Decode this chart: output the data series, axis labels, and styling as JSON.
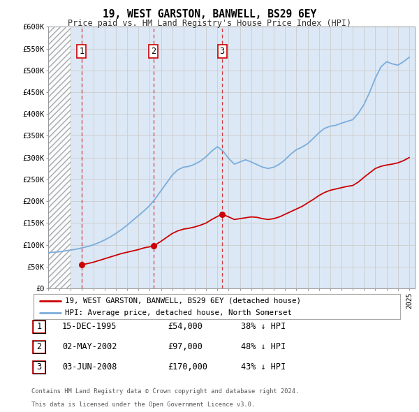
{
  "title": "19, WEST GARSTON, BANWELL, BS29 6EY",
  "subtitle": "Price paid vs. HM Land Registry's House Price Index (HPI)",
  "ylim": [
    0,
    600000
  ],
  "yticks": [
    0,
    50000,
    100000,
    150000,
    200000,
    250000,
    300000,
    350000,
    400000,
    450000,
    500000,
    550000,
    600000
  ],
  "ytick_labels": [
    "£0",
    "£50K",
    "£100K",
    "£150K",
    "£200K",
    "£250K",
    "£300K",
    "£350K",
    "£400K",
    "£450K",
    "£500K",
    "£550K",
    "£600K"
  ],
  "xlim_start": 1993.0,
  "xlim_end": 2025.5,
  "hatch_end": 1995.0,
  "transactions": [
    {
      "year": 1995.96,
      "price": 54000,
      "label": "1"
    },
    {
      "year": 2002.33,
      "price": 97000,
      "label": "2"
    },
    {
      "year": 2008.42,
      "price": 170000,
      "label": "3"
    }
  ],
  "hpi_line_color": "#7aaddc",
  "price_line_color": "#cc0000",
  "transaction_dot_color": "#cc0000",
  "transaction_box_color": "#cc0000",
  "grid_color": "#cccccc",
  "background_color": "#ffffff",
  "plot_bg_color": "#dce8f5",
  "legend_label_price": "19, WEST GARSTON, BANWELL, BS29 6EY (detached house)",
  "legend_label_hpi": "HPI: Average price, detached house, North Somerset",
  "footer_line1": "Contains HM Land Registry data © Crown copyright and database right 2024.",
  "footer_line2": "This data is licensed under the Open Government Licence v3.0.",
  "table_rows": [
    {
      "num": "1",
      "date": "15-DEC-1995",
      "price": "£54,000",
      "pct": "38% ↓ HPI"
    },
    {
      "num": "2",
      "date": "02-MAY-2002",
      "price": "£97,000",
      "pct": "48% ↓ HPI"
    },
    {
      "num": "3",
      "date": "03-JUN-2008",
      "price": "£170,000",
      "pct": "43% ↓ HPI"
    }
  ],
  "hpi_data_x": [
    1993.0,
    1993.5,
    1994.0,
    1994.5,
    1995.0,
    1995.5,
    1996.0,
    1996.5,
    1997.0,
    1997.5,
    1998.0,
    1998.5,
    1999.0,
    1999.5,
    2000.0,
    2000.5,
    2001.0,
    2001.5,
    2002.0,
    2002.5,
    2003.0,
    2003.5,
    2004.0,
    2004.5,
    2005.0,
    2005.5,
    2006.0,
    2006.5,
    2007.0,
    2007.5,
    2008.0,
    2008.5,
    2009.0,
    2009.5,
    2010.0,
    2010.5,
    2011.0,
    2011.5,
    2012.0,
    2012.5,
    2013.0,
    2013.5,
    2014.0,
    2014.5,
    2015.0,
    2015.5,
    2016.0,
    2016.5,
    2017.0,
    2017.5,
    2018.0,
    2018.5,
    2019.0,
    2019.5,
    2020.0,
    2020.5,
    2021.0,
    2021.5,
    2022.0,
    2022.5,
    2023.0,
    2023.5,
    2024.0,
    2024.5,
    2025.0
  ],
  "hpi_data_y": [
    82000,
    83000,
    84000,
    86000,
    88000,
    90000,
    93000,
    96000,
    100000,
    105000,
    111000,
    118000,
    126000,
    135000,
    145000,
    156000,
    167000,
    178000,
    190000,
    206000,
    224000,
    242000,
    260000,
    272000,
    278000,
    280000,
    285000,
    292000,
    302000,
    315000,
    325000,
    315000,
    298000,
    285000,
    290000,
    295000,
    290000,
    284000,
    278000,
    275000,
    278000,
    285000,
    295000,
    308000,
    318000,
    324000,
    332000,
    344000,
    357000,
    367000,
    372000,
    374000,
    379000,
    383000,
    387000,
    402000,
    422000,
    450000,
    482000,
    508000,
    520000,
    515000,
    512000,
    520000,
    530000
  ],
  "red_data_x": [
    1995.96,
    1996.5,
    1997.0,
    1997.5,
    1998.0,
    1998.5,
    1999.0,
    1999.5,
    2000.0,
    2000.5,
    2001.0,
    2001.5,
    2002.33,
    2003.0,
    2003.5,
    2004.0,
    2004.5,
    2005.0,
    2005.5,
    2006.0,
    2006.5,
    2007.0,
    2007.5,
    2008.0,
    2008.42,
    2009.0,
    2009.5,
    2010.0,
    2010.5,
    2011.0,
    2011.5,
    2012.0,
    2012.5,
    2013.0,
    2013.5,
    2014.0,
    2014.5,
    2015.0,
    2015.5,
    2016.0,
    2016.5,
    2017.0,
    2017.5,
    2018.0,
    2018.5,
    2019.0,
    2019.5,
    2020.0,
    2020.5,
    2021.0,
    2021.5,
    2022.0,
    2022.5,
    2023.0,
    2023.5,
    2024.0,
    2024.5,
    2025.0
  ],
  "red_data_y": [
    54000,
    57000,
    60000,
    64000,
    68000,
    72000,
    76000,
    80000,
    83000,
    86000,
    89000,
    93000,
    97000,
    108000,
    117000,
    126000,
    132000,
    136000,
    138000,
    141000,
    145000,
    150000,
    158000,
    165000,
    170000,
    164000,
    158000,
    160000,
    162000,
    164000,
    163000,
    160000,
    158000,
    160000,
    164000,
    170000,
    176000,
    182000,
    188000,
    196000,
    204000,
    213000,
    220000,
    225000,
    228000,
    231000,
    234000,
    236000,
    244000,
    255000,
    265000,
    275000,
    280000,
    283000,
    285000,
    288000,
    293000,
    300000
  ]
}
